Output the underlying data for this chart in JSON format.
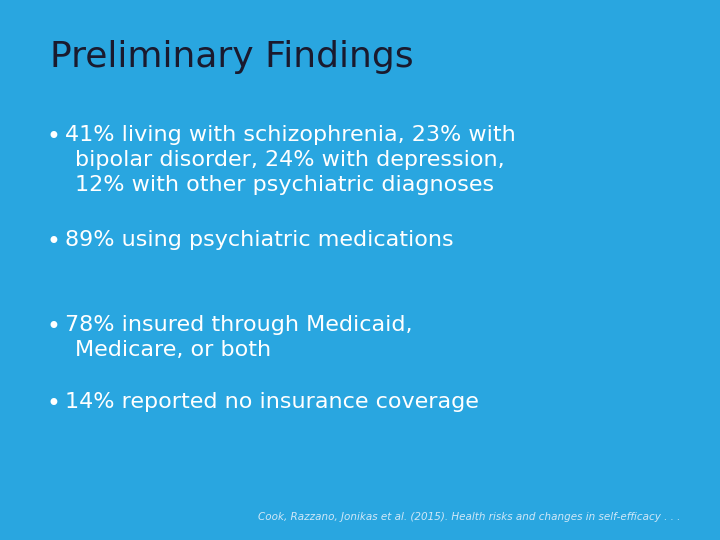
{
  "title": "Preliminary Findings",
  "title_color": "#1a1a2e",
  "title_fontsize": 26,
  "background_color": "#29A6E0",
  "bullet_items": [
    {
      "bullet": "•",
      "line1": "41% living with schizophrenia, 23% with",
      "line2": "bipolar disorder, 24% with depression,",
      "line3": "12% with other psychiatric diagnoses"
    },
    {
      "bullet": "•",
      "line1": "89% using psychiatric medications",
      "line2": null,
      "line3": null
    },
    {
      "bullet": "•",
      "line1": "78% insured through Medicaid,",
      "line2": "Medicare, or both",
      "line3": null
    },
    {
      "bullet": "•",
      "line1": "14% reported no insurance coverage",
      "line2": null,
      "line3": null
    }
  ],
  "bullet_color": "#ffffff",
  "bullet_fontsize": 16,
  "footnote": "Cook, Razzano, Jonikas et al. (2015). Health risks and changes in self-efficacy . . .",
  "footnote_color": "#d0e8f8",
  "footnote_fontsize": 7.5
}
